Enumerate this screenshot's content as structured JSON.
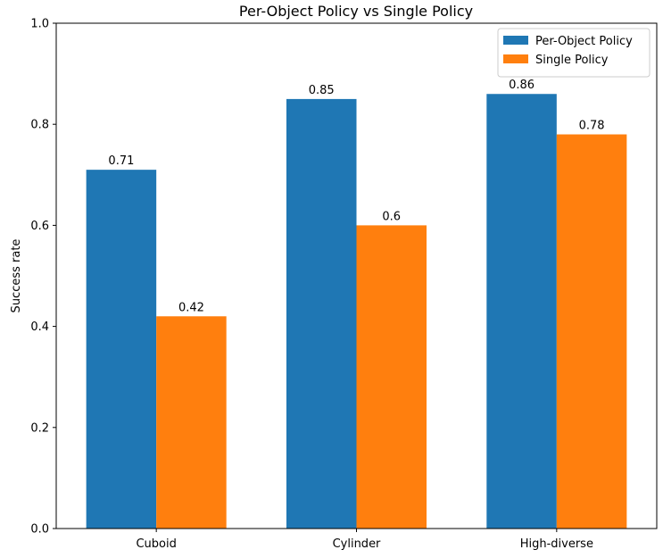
{
  "chart_data": {
    "type": "bar",
    "title": "Per-Object Policy vs Single Policy",
    "xlabel": "",
    "ylabel": "Success rate",
    "ylim": [
      0,
      1.0
    ],
    "yticks": [
      "0.0",
      "0.2",
      "0.4",
      "0.6",
      "0.8",
      "1.0"
    ],
    "categories": [
      "Cuboid",
      "Cylinder",
      "High-diverse"
    ],
    "series": [
      {
        "name": "Per-Object Policy",
        "color": "#1f77b4",
        "values": [
          0.71,
          0.85,
          0.86
        ],
        "labels": [
          "0.71",
          "0.85",
          "0.86"
        ]
      },
      {
        "name": "Single Policy",
        "color": "#ff7f0e",
        "values": [
          0.42,
          0.6,
          0.78
        ],
        "labels": [
          "0.42",
          "0.6",
          "0.78"
        ]
      }
    ],
    "legend_position": "top-right",
    "grid": false
  }
}
